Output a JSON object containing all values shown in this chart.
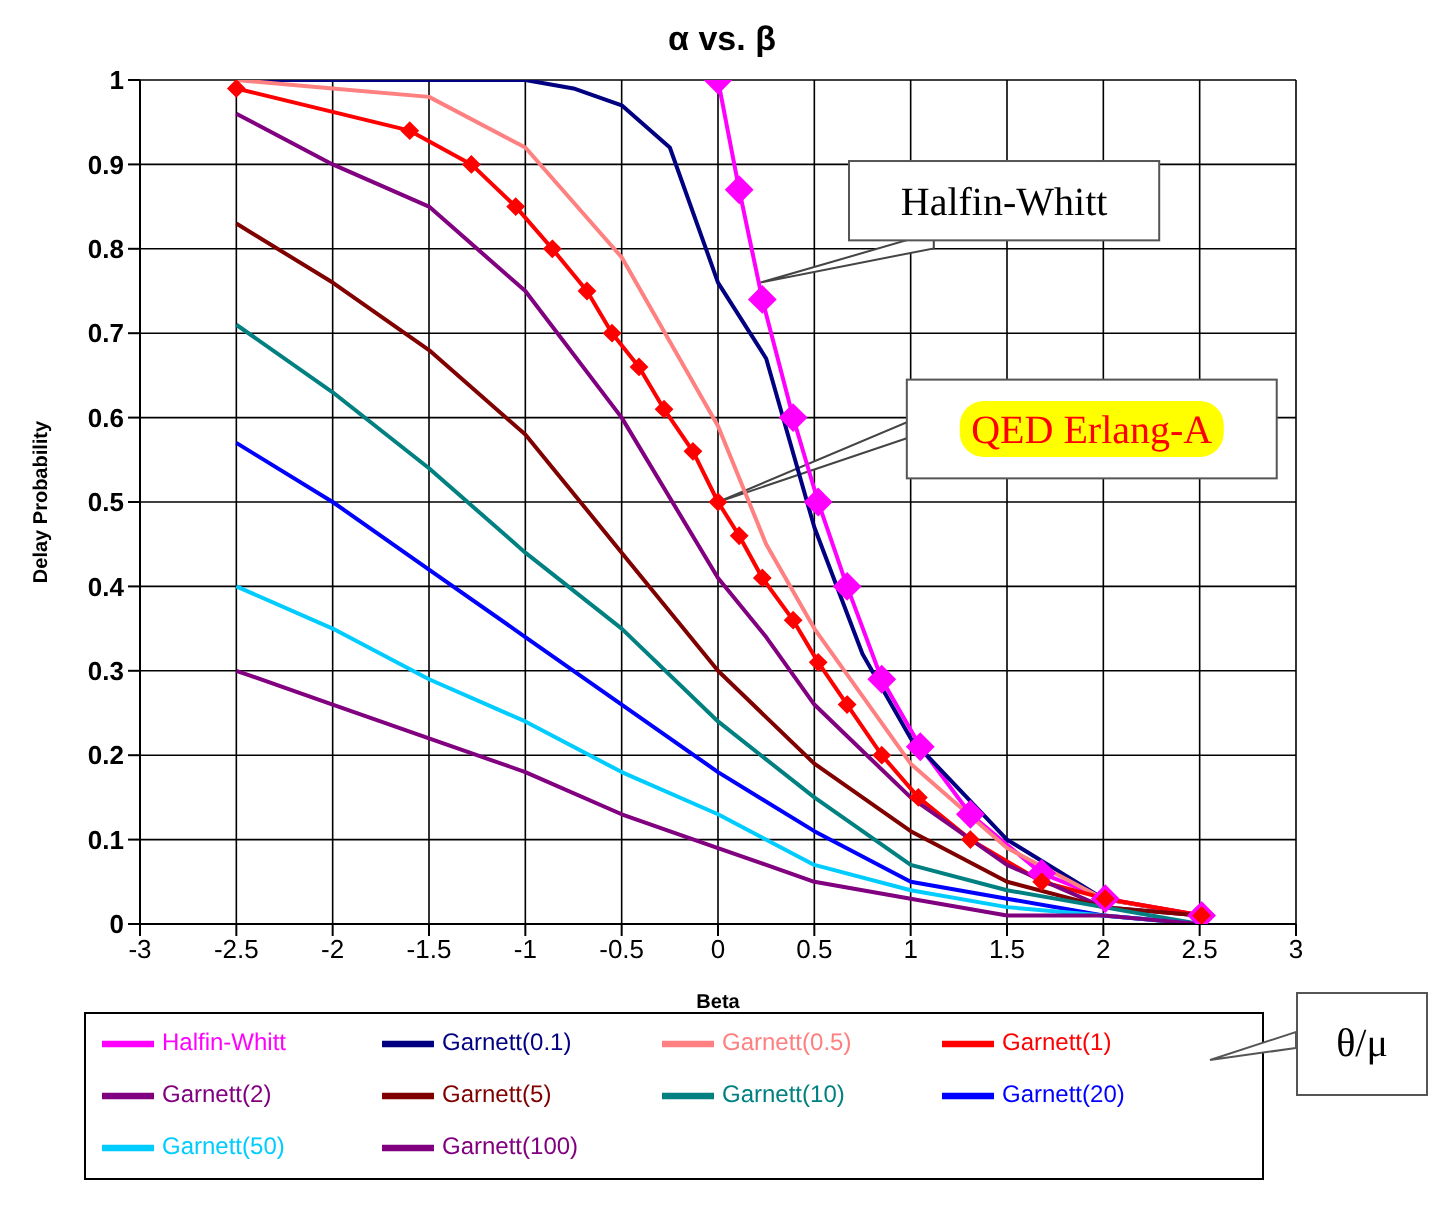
{
  "chart_data": {
    "type": "line",
    "title": "α vs. β",
    "xlabel": "Beta",
    "ylabel": "Delay Probability",
    "x": [
      -2.5,
      -2,
      -1.5,
      -1,
      -0.5,
      0,
      0.5,
      1,
      1.5,
      2,
      2.5
    ],
    "series": [
      {
        "name": "Halfin-Whitt",
        "color": "#ff00ff",
        "marker": "diamond",
        "x": [
          0,
          0.11,
          0.23,
          0.39,
          0.52,
          0.67,
          0.85,
          1.05,
          1.31,
          1.68,
          2.01,
          2.51
        ],
        "values": [
          1,
          0.87,
          0.74,
          0.6,
          0.5,
          0.4,
          0.29,
          0.21,
          0.13,
          0.06,
          0.03,
          0.01
        ]
      },
      {
        "name": "Garnett(0.1)",
        "color": "#000080",
        "x": [
          -2.5,
          -1.5,
          -1,
          -0.75,
          -0.5,
          -0.25,
          0,
          0.25,
          0.5,
          0.75,
          1,
          1.5,
          2,
          2.5
        ],
        "values": [
          1,
          1,
          1,
          0.99,
          0.97,
          0.92,
          0.76,
          0.67,
          0.47,
          0.32,
          0.22,
          0.1,
          0.03,
          0.01
        ]
      },
      {
        "name": "Garnett(0.5)",
        "color": "#ff8080",
        "x": [
          -2.5,
          -2,
          -1.5,
          -1,
          -0.5,
          0,
          0.25,
          0.5,
          0.75,
          1,
          1.5,
          2,
          2.5
        ],
        "values": [
          1,
          0.99,
          0.98,
          0.92,
          0.79,
          0.59,
          0.45,
          0.35,
          0.27,
          0.19,
          0.09,
          0.03,
          0.01
        ]
      },
      {
        "name": "Garnett(1)",
        "color": "#ff0000",
        "marker": "diamond",
        "x": [
          -2.5,
          -1.6,
          -1.28,
          -1.05,
          -0.86,
          -0.68,
          -0.55,
          -0.41,
          -0.28,
          -0.13,
          0,
          0.11,
          0.23,
          0.39,
          0.52,
          0.67,
          0.85,
          1.04,
          1.31,
          1.68,
          2.01,
          2.51
        ],
        "values": [
          0.99,
          0.94,
          0.9,
          0.85,
          0.8,
          0.75,
          0.7,
          0.66,
          0.61,
          0.56,
          0.5,
          0.46,
          0.41,
          0.36,
          0.31,
          0.26,
          0.2,
          0.15,
          0.1,
          0.05,
          0.03,
          0.01
        ]
      },
      {
        "name": "Garnett(2)",
        "color": "#800080",
        "x": [
          -2.5,
          -2,
          -1.5,
          -1,
          -0.5,
          0,
          0.25,
          0.5,
          1,
          1.5,
          2,
          2.5
        ],
        "values": [
          0.96,
          0.9,
          0.85,
          0.75,
          0.6,
          0.41,
          0.34,
          0.26,
          0.15,
          0.07,
          0.02,
          0.01
        ]
      },
      {
        "name": "Garnett(5)",
        "color": "#800000",
        "values": [
          0.83,
          0.76,
          0.68,
          0.58,
          0.44,
          0.3,
          0.19,
          0.11,
          0.05,
          0.02,
          0.01
        ]
      },
      {
        "name": "Garnett(10)",
        "color": "#008080",
        "values": [
          0.71,
          0.63,
          0.54,
          0.44,
          0.35,
          0.24,
          0.15,
          0.07,
          0.04,
          0.02,
          0
        ]
      },
      {
        "name": "Garnett(20)",
        "color": "#0000ff",
        "values": [
          0.57,
          0.5,
          0.42,
          0.34,
          0.26,
          0.18,
          0.11,
          0.05,
          0.03,
          0.01,
          0
        ]
      },
      {
        "name": "Garnett(50)",
        "color": "#00ccff",
        "values": [
          0.4,
          0.35,
          0.29,
          0.24,
          0.18,
          0.13,
          0.07,
          0.04,
          0.02,
          0.01,
          0
        ]
      },
      {
        "name": "Garnett(100)",
        "color": "#800080",
        "values": [
          0.3,
          0.26,
          0.22,
          0.18,
          0.13,
          0.09,
          0.05,
          0.03,
          0.01,
          0.01,
          0
        ]
      }
    ],
    "xlim": [
      -3,
      3
    ],
    "xticks": [
      -3,
      -2.5,
      -2,
      -1.5,
      -1,
      -0.5,
      0,
      0.5,
      1,
      1.5,
      2,
      2.5,
      3
    ],
    "ylim": [
      0,
      1
    ],
    "yticks": [
      0,
      0.1,
      0.2,
      0.3,
      0.4,
      0.5,
      0.6,
      0.7,
      0.8,
      0.9,
      1
    ],
    "grid": true,
    "legend": "bottom",
    "marker": "none",
    "line_style": "solid",
    "annotations": [
      {
        "text": "Halfin-Whitt",
        "x": 0.22,
        "y": 0.76
      },
      "QED Erlang-A",
      "θ/μ"
    ]
  }
}
